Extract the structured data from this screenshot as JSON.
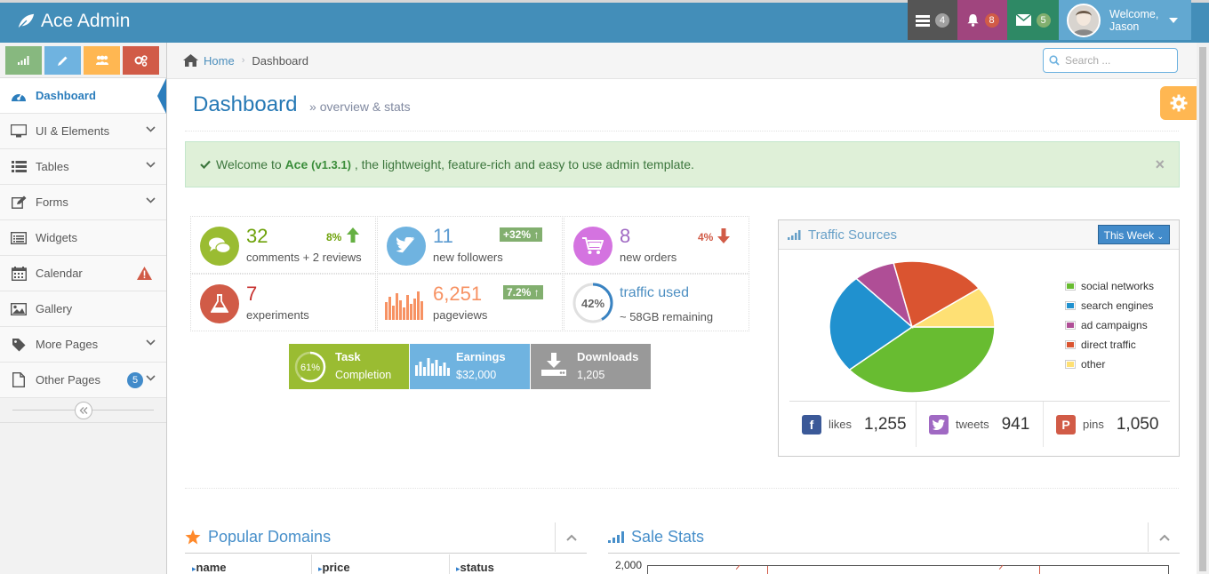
{
  "navbar": {
    "brand": "Ace Admin",
    "tasks_count": "4",
    "notifications_count": "8",
    "messages_count": "5",
    "welcome": "Welcome,",
    "user_name": "Jason",
    "colors": {
      "bar": "#438eb9",
      "tasks": "#555555",
      "notifications": "#a0457e",
      "messages": "#2e8965",
      "user": "#62a8d1"
    }
  },
  "sidebar": {
    "shortcut_icons": [
      "signal-icon",
      "pencil-icon",
      "users-icon",
      "cogs-icon"
    ],
    "items": [
      {
        "label": "Dashboard",
        "icon": "tachometer-icon"
      },
      {
        "label": "UI & Elements",
        "icon": "desktop-icon"
      },
      {
        "label": "Tables",
        "icon": "list-icon"
      },
      {
        "label": "Forms",
        "icon": "edit-icon"
      },
      {
        "label": "Widgets",
        "icon": "list-alt-icon"
      },
      {
        "label": "Calendar",
        "icon": "calendar-icon"
      },
      {
        "label": "Gallery",
        "icon": "picture-icon"
      },
      {
        "label": "More Pages",
        "icon": "tag-icon"
      },
      {
        "label": "Other Pages",
        "icon": "file-icon",
        "badge": "5"
      }
    ]
  },
  "breadcrumb": {
    "home": "Home",
    "current": "Dashboard"
  },
  "search": {
    "placeholder": "Search ..."
  },
  "page": {
    "title": "Dashboard",
    "subtitle": "overview & stats"
  },
  "alert": {
    "prefix": "Welcome to",
    "brand": "Ace",
    "version": "(v1.3.1)",
    "suffix": ", the lightweight, feature-rich and easy to use admin template.",
    "close": "×"
  },
  "infoboxes": [
    {
      "value": "32",
      "label": "comments + 2 reviews",
      "stat": "8%"
    },
    {
      "value": "11",
      "label": "new followers",
      "stat": "+32%"
    },
    {
      "value": "8",
      "label": "new orders",
      "stat": "4%"
    },
    {
      "value": "7",
      "label": "experiments"
    },
    {
      "value": "6,251",
      "label": "pageviews",
      "stat": "7.2%"
    },
    {
      "value": "traffic used",
      "label": "~ 58GB remaining",
      "percent": "42%"
    }
  ],
  "bigboxes": [
    {
      "title": "Task",
      "sub": "Completion",
      "percent": "61%",
      "color": "#9abc32"
    },
    {
      "title": "Earnings",
      "sub": "$32,000",
      "color": "#6fb3e0"
    },
    {
      "title": "Downloads",
      "sub": "1,205",
      "color": "#999999"
    }
  ],
  "traffic": {
    "title": "Traffic Sources",
    "range_button": "This Week",
    "legend": [
      "social networks",
      "search engines",
      "ad campaigns",
      "direct traffic",
      "other"
    ],
    "social": [
      {
        "label": "likes",
        "value": "1,255",
        "icon": "facebook-icon"
      },
      {
        "label": "tweets",
        "value": "941",
        "icon": "twitter-icon"
      },
      {
        "label": "pins",
        "value": "1,050",
        "icon": "pinterest-icon"
      }
    ]
  },
  "chart_data": {
    "type": "pie",
    "categories": [
      "social networks",
      "search engines",
      "ad campaigns",
      "direct traffic",
      "other"
    ],
    "values": [
      38.7,
      24.5,
      8.2,
      18.6,
      10
    ],
    "colors": [
      "#68BC31",
      "#2091CF",
      "#AF4E96",
      "#DA5430",
      "#FEE074"
    ],
    "legend": "right"
  },
  "popular_domains": {
    "title": "Popular Domains",
    "columns": [
      "name",
      "price",
      "status"
    ]
  },
  "sale_stats": {
    "title": "Sale Stats",
    "y_tick": "2,000"
  }
}
